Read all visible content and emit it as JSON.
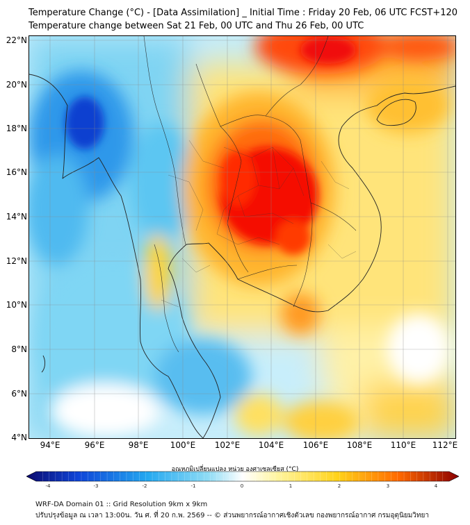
{
  "title": {
    "line1": "Temperature Change (°C) - [Data Assimilation] _ Initial Time : Friday 20 Feb, 06 UTC FCST+120",
    "line2": "Temperature change between Sat 21 Feb, 00 UTC and Thu 26 Feb, 00 UTC"
  },
  "axes": {
    "lat_labels": [
      "22°N",
      "20°N",
      "18°N",
      "16°N",
      "14°N",
      "12°N",
      "10°N",
      "8°N",
      "6°N",
      "4°N"
    ],
    "lon_labels": [
      "94°E",
      "96°E",
      "98°E",
      "100°E",
      "102°E",
      "104°E",
      "106°E",
      "108°E",
      "110°E",
      "112°E"
    ]
  },
  "colorbar": {
    "title": "อุณหภูมิเปลี่ยนแปลง หน่วย องศาเซลเซียส (°C)",
    "ticks": [
      "-4",
      "-3",
      "-2",
      "-1",
      "0",
      "1",
      "2",
      "3",
      "4"
    ],
    "min": -4,
    "max": 4,
    "colors": {
      "cold_extreme": "#0b0a6e",
      "cold_strong": "#0f45d8",
      "cold_mid": "#24a8f0",
      "cold_light": "#8fdcf5",
      "neutral": "#ffffff",
      "warm_light": "#fff5a0",
      "warm_mid": "#ffd21a",
      "warm_strong": "#ff6a00",
      "warm_extreme": "#8b0000"
    }
  },
  "footer": {
    "line1": "WRF-DA Domain 01 :: Grid Resolution 9km x 9km",
    "line2": "ปรับปรุงข้อมูล ณ เวลา 13:00น. วัน ศ. ที่ 20 ก.พ. 2569 -- © ส่วนพยากรณ์อากาศเชิงตัวเลข กองพยากรณ์อากาศ กรมอุตุนิยมวิทยา"
  }
}
